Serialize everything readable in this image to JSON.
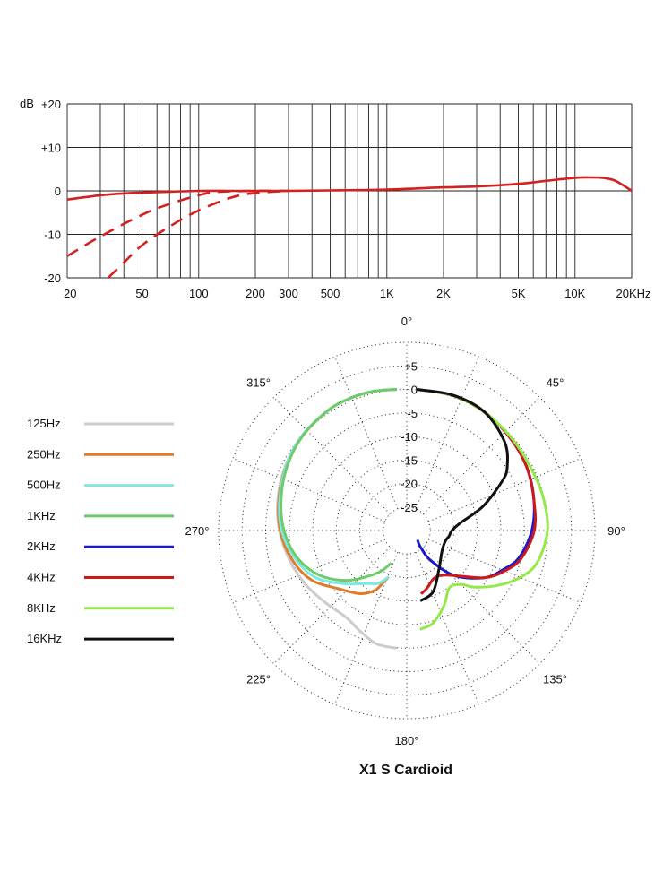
{
  "chart_data": [
    {
      "type": "line",
      "ylabel": "dB",
      "x_scale": "log",
      "xlim": [
        20,
        20000
      ],
      "ylim": [
        -20,
        20
      ],
      "x_tick_values": [
        20,
        50,
        100,
        200,
        300,
        500,
        1000,
        2000,
        5000,
        10000,
        20000
      ],
      "x_tick_labels": [
        "20",
        "50",
        "100",
        "200",
        "300",
        "500",
        "1K",
        "2K",
        "5K",
        "10K",
        "20KHz"
      ],
      "y_tick_values": [
        20,
        10,
        0,
        -10,
        -20
      ],
      "y_tick_labels": [
        "+20",
        "+10",
        "0",
        "-10",
        "-20"
      ],
      "grid": true,
      "color": "#d42020",
      "series": [
        {
          "style": "solid",
          "x": [
            20,
            30,
            40,
            50,
            70,
            100,
            150,
            200,
            300,
            500,
            1000,
            2000,
            3000,
            5000,
            7000,
            10000,
            12000,
            14000,
            16000,
            18000,
            20000
          ],
          "y": [
            -2,
            -1,
            -0.6,
            -0.4,
            -0.2,
            0,
            0,
            0,
            0,
            0.1,
            0.3,
            0.8,
            1,
            1.6,
            2.3,
            3,
            3.1,
            3,
            2.5,
            1.3,
            0
          ]
        },
        {
          "style": "dashed",
          "x": [
            20,
            30,
            50,
            70,
            100,
            120,
            150,
            200,
            300
          ],
          "y": [
            -15,
            -10.5,
            -5.5,
            -3,
            -1,
            -0.3,
            -0.1,
            0,
            0
          ]
        },
        {
          "style": "dashed",
          "x": [
            33,
            40,
            50,
            70,
            100,
            150,
            200,
            300
          ],
          "y": [
            -20,
            -16.5,
            -12.5,
            -8.2,
            -4.5,
            -1.5,
            -0.5,
            0
          ]
        }
      ]
    },
    {
      "type": "polar",
      "title": "X1 S  Cardioid",
      "angle_labels": [
        {
          "deg": 0,
          "label": "0°"
        },
        {
          "deg": 45,
          "label": "45°"
        },
        {
          "deg": 90,
          "label": "90°"
        },
        {
          "deg": 135,
          "label": "135°"
        },
        {
          "deg": 180,
          "label": "180°"
        },
        {
          "deg": 225,
          "label": "225°"
        },
        {
          "deg": 270,
          "label": "270°"
        },
        {
          "deg": 315,
          "label": "315°"
        }
      ],
      "radial_ticks": [
        "+5",
        "0",
        "-5",
        "-10",
        "-15",
        "-20",
        "-25"
      ],
      "radial_values": [
        5,
        0,
        -5,
        -10,
        -15,
        -20,
        -25
      ],
      "rlim": [
        -30,
        10
      ],
      "series": [
        {
          "name": "125Hz",
          "color": "#cccccc",
          "side": "left",
          "angles": [
            0,
            10,
            20,
            30,
            45,
            60,
            75,
            90,
            105,
            120,
            135,
            150,
            160,
            170,
            180
          ],
          "values": [
            0,
            0,
            -0.2,
            -0.6,
            -1.5,
            -2.6,
            -3.8,
            -5,
            -6.3,
            -7.4,
            -8.4,
            -8.6,
            -7.2,
            -5.5,
            -5
          ]
        },
        {
          "name": "250Hz",
          "color": "#e07b2a",
          "side": "left",
          "angles": [
            0,
            10,
            20,
            30,
            45,
            60,
            75,
            90,
            105,
            120,
            135,
            150,
            160,
            165,
            170
          ],
          "values": [
            0,
            0,
            -0.2,
            -0.6,
            -1.6,
            -2.8,
            -4,
            -5.2,
            -6.8,
            -9,
            -12.5,
            -14.5,
            -16.5,
            -18.5,
            -20
          ]
        },
        {
          "name": "500Hz",
          "color": "#7fe8e0",
          "side": "left",
          "angles": [
            0,
            10,
            20,
            30,
            45,
            60,
            75,
            90,
            105,
            120,
            135,
            150,
            160,
            165,
            170
          ],
          "values": [
            0,
            0,
            -0.2,
            -0.6,
            -1.5,
            -2.8,
            -4.2,
            -5.5,
            -7.5,
            -10,
            -14,
            -17,
            -18,
            -19,
            -20
          ]
        },
        {
          "name": "1KHz",
          "color": "#6ccc6c",
          "side": "left",
          "angles": [
            0,
            10,
            20,
            30,
            45,
            60,
            75,
            90,
            105,
            120,
            135,
            150,
            160,
            170
          ],
          "values": [
            0,
            0,
            -0.2,
            -0.6,
            -1.6,
            -3,
            -4.5,
            -6,
            -8,
            -11,
            -15,
            -19,
            -21,
            -23
          ]
        },
        {
          "name": "2KHz",
          "color": "#1a1acc",
          "side": "right",
          "angles": [
            0,
            15,
            30,
            45,
            60,
            75,
            90,
            105,
            115,
            125,
            140,
            155,
            165,
            170,
            175
          ],
          "values": [
            0,
            -0.3,
            -1,
            -2,
            -3,
            -4.2,
            -5.5,
            -7.5,
            -10,
            -12.5,
            -17.5,
            -23,
            -26,
            -27,
            -28
          ]
        },
        {
          "name": "4KHz",
          "color": "#cc1a1a",
          "side": "right",
          "angles": [
            0,
            15,
            30,
            45,
            60,
            75,
            90,
            105,
            115,
            125,
            140,
            150,
            160,
            170,
            176
          ],
          "values": [
            0,
            -0.3,
            -1,
            -2,
            -3,
            -4.2,
            -5,
            -7,
            -9.5,
            -12.5,
            -17.5,
            -19,
            -19.2,
            -17.5,
            -16.5
          ]
        },
        {
          "name": "8KHz",
          "color": "#94e84a",
          "side": "right",
          "angles": [
            0,
            15,
            30,
            45,
            60,
            75,
            90,
            105,
            115,
            125,
            135,
            140,
            150,
            160,
            170,
            178
          ],
          "values": [
            0,
            -0.3,
            -1,
            -1.8,
            -2.3,
            -2.2,
            -2.2,
            -3.5,
            -6,
            -9.5,
            -13,
            -15,
            -16,
            -13,
            -10,
            -9
          ]
        },
        {
          "name": "16KHz",
          "color": "#111111",
          "side": "right",
          "angles": [
            0,
            15,
            30,
            45,
            55,
            60,
            70,
            80,
            90,
            100,
            110,
            130,
            150,
            165,
            177
          ],
          "values": [
            0,
            -0.2,
            -1,
            -3.5,
            -6.5,
            -9,
            -15,
            -20.5,
            -22.5,
            -23,
            -23.5,
            -23,
            -20.5,
            -16.5,
            -15
          ]
        }
      ]
    }
  ]
}
